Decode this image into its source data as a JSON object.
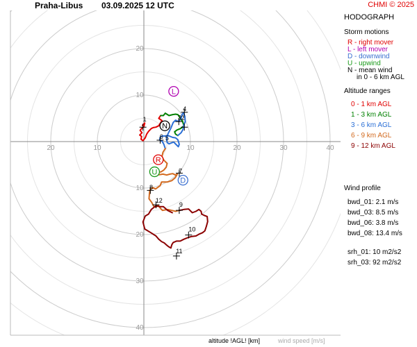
{
  "header": {
    "station": "Praha-Libus",
    "datetime": "03.09.2025 12 UTC",
    "copyright": "CHMI © 2025"
  },
  "panel": {
    "title": "HODOGRAPH",
    "storm_title": "Storm motions",
    "storm_items": [
      {
        "text": "R - right mover",
        "color": "#e00000"
      },
      {
        "text": "L - left mover",
        "color": "#b000b0"
      },
      {
        "text": "D - downwind",
        "color": "#3a6fd0"
      },
      {
        "text": "U - upwind",
        "color": "#1a9a1a"
      },
      {
        "text": "N - mean wind",
        "color": "#000000"
      },
      {
        "text": "in 0 - 6 km AGL",
        "color": "#000000"
      }
    ],
    "alt_title": "Altitude ranges",
    "alt_items": [
      {
        "text": "0 - 1 km AGL",
        "color": "#e00000"
      },
      {
        "text": "1 - 3 km AGL",
        "color": "#008000"
      },
      {
        "text": "3 - 6 km AGL",
        "color": "#2a6fd6"
      },
      {
        "text": "6 - 9 km AGL",
        "color": "#d2691e"
      },
      {
        "text": "9 - 12 km AGL",
        "color": "#8b0000"
      }
    ],
    "profile_title": "Wind profile",
    "profile_items": [
      "bwd_01: 2.1 m/s",
      "bwd_03: 8.5 m/s",
      "bwd_06: 3.8 m/s",
      "bwd_08: 13.4 m/s",
      "srh_01: 10 m2/s2",
      "srh_03: 92 m2/s2"
    ]
  },
  "footer": {
    "altitude": "altitude !AGL! [km]",
    "speed": "wind speed [m/s]"
  },
  "chart_data": {
    "type": "hodograph",
    "title": "HODOGRAPH",
    "rings": [
      10,
      20,
      30,
      40
    ],
    "ring_labels": [
      "10",
      "20",
      "30",
      "40"
    ],
    "x_tick_labels_left": [
      "10",
      "20"
    ],
    "x_tick_labels_right": [
      "10",
      "20",
      "30",
      "40"
    ],
    "grid": true,
    "colors": {
      "ring": "#cccccc",
      "axis": "#888888",
      "label": "#999999"
    },
    "series": [
      {
        "color": "#e00000",
        "points": [
          [
            -0.3,
            3.5
          ],
          [
            0.2,
            4.0
          ],
          [
            0.0,
            3.2
          ],
          [
            -0.5,
            2.8
          ],
          [
            -0.8,
            2.4
          ],
          [
            -0.4,
            1.9
          ],
          [
            -0.9,
            1.4
          ],
          [
            -0.5,
            1.1
          ],
          [
            -0.6,
            0.5
          ],
          [
            -0.2,
            0.2
          ],
          [
            0.3,
            0.8
          ],
          [
            0.6,
            1.6
          ],
          [
            1.0,
            2.2
          ],
          [
            1.6,
            2.8
          ],
          [
            2.0,
            3.0
          ],
          [
            2.6,
            3.1
          ],
          [
            3.2,
            3.4
          ],
          [
            3.5,
            3.9
          ],
          [
            3.9,
            4.5
          ],
          [
            3.2,
            5.0
          ],
          [
            3.6,
            5.6
          ]
        ]
      },
      {
        "color": "#008000",
        "points": [
          [
            3.6,
            5.6
          ],
          [
            4.2,
            5.6
          ],
          [
            4.6,
            6.1
          ],
          [
            5.4,
            5.6
          ],
          [
            6.2,
            5.8
          ],
          [
            6.8,
            5.9
          ],
          [
            7.3,
            5.8
          ],
          [
            7.6,
            5.4
          ],
          [
            7.9,
            4.8
          ],
          [
            8.3,
            4.4
          ],
          [
            8.6,
            3.4
          ],
          [
            7.9,
            2.8
          ],
          [
            7.1,
            2.5
          ],
          [
            6.6,
            2.1
          ],
          [
            6.8,
            1.6
          ],
          [
            7.3,
            1.3
          ]
        ]
      },
      {
        "color": "#2a6fd6",
        "points": [
          [
            7.3,
            1.3
          ],
          [
            8.0,
            1.9
          ],
          [
            8.4,
            2.6
          ],
          [
            8.6,
            3.6
          ],
          [
            8.9,
            4.3
          ],
          [
            8.8,
            5.4
          ],
          [
            8.5,
            6.2
          ],
          [
            8.2,
            5.8
          ],
          [
            8.0,
            5.0
          ],
          [
            7.6,
            4.4
          ],
          [
            7.2,
            4.4
          ],
          [
            6.8,
            4.6
          ],
          [
            6.3,
            4.1
          ],
          [
            5.8,
            2.9
          ],
          [
            5.1,
            1.5
          ],
          [
            4.9,
            0.5
          ],
          [
            5.0,
            -0.2
          ],
          [
            5.4,
            -0.5
          ],
          [
            5.9,
            -0.3
          ],
          [
            6.4,
            -0.1
          ],
          [
            6.9,
            -0.6
          ],
          [
            7.4,
            -1.1
          ],
          [
            7.6,
            -0.6
          ],
          [
            7.3,
            0.4
          ],
          [
            6.8,
            0.8
          ],
          [
            6.2,
            0.9
          ],
          [
            5.2,
            1.3
          ],
          [
            4.6,
            1.2
          ],
          [
            3.9,
            1.2
          ],
          [
            3.5,
            0.9
          ],
          [
            3.4,
            0.3
          ],
          [
            3.9,
            0.1
          ],
          [
            4.3,
            -0.6
          ],
          [
            4.6,
            -1.5
          ]
        ]
      },
      {
        "color": "#d2691e",
        "points": [
          [
            4.6,
            -1.5
          ],
          [
            4.1,
            -2.3
          ],
          [
            3.9,
            -3.2
          ],
          [
            4.3,
            -4.0
          ],
          [
            5.0,
            -4.7
          ],
          [
            4.8,
            -5.5
          ],
          [
            4.3,
            -6.1
          ],
          [
            3.7,
            -6.5
          ],
          [
            3.0,
            -6.6
          ],
          [
            2.3,
            -6.2
          ],
          [
            2.1,
            -6.6
          ],
          [
            2.6,
            -7.2
          ],
          [
            3.4,
            -7.1
          ],
          [
            4.1,
            -7.0
          ],
          [
            4.9,
            -7.2
          ],
          [
            5.6,
            -7.0
          ],
          [
            6.2,
            -6.9
          ],
          [
            6.8,
            -7.2
          ],
          [
            7.2,
            -7.0
          ],
          [
            6.7,
            -7.8
          ],
          [
            6.0,
            -8.4
          ],
          [
            5.0,
            -8.7
          ],
          [
            3.8,
            -8.7
          ],
          [
            3.5,
            -9.5
          ],
          [
            2.5,
            -10.2
          ],
          [
            1.9,
            -9.9
          ],
          [
            1.3,
            -10.4
          ],
          [
            1.2,
            -11.2
          ],
          [
            1.1,
            -12.3
          ],
          [
            1.7,
            -13.1
          ],
          [
            2.1,
            -13.9
          ],
          [
            2.6,
            -14.1
          ],
          [
            3.1,
            -13.7
          ],
          [
            3.6,
            -14.4
          ],
          [
            4.0,
            -14.8
          ],
          [
            5.1,
            -14.6
          ],
          [
            6.0,
            -14.8
          ],
          [
            6.8,
            -15.0
          ],
          [
            7.6,
            -14.8
          ]
        ]
      },
      {
        "color": "#8b0000",
        "points": [
          [
            7.6,
            -14.8
          ],
          [
            8.6,
            -14.6
          ],
          [
            9.6,
            -14.5
          ],
          [
            10.4,
            -15.3
          ],
          [
            11.2,
            -15.0
          ],
          [
            11.8,
            -14.6
          ],
          [
            12.3,
            -15.0
          ],
          [
            12.4,
            -15.6
          ],
          [
            13.0,
            -15.9
          ],
          [
            13.6,
            -16.1
          ],
          [
            13.7,
            -17.2
          ],
          [
            13.4,
            -18.3
          ],
          [
            13.1,
            -19.2
          ],
          [
            12.6,
            -19.6
          ],
          [
            11.9,
            -19.9
          ],
          [
            11.2,
            -20.3
          ],
          [
            10.3,
            -20.4
          ],
          [
            9.6,
            -20.6
          ],
          [
            8.6,
            -21.0
          ],
          [
            7.8,
            -21.4
          ],
          [
            7.0,
            -21.4
          ],
          [
            6.3,
            -21.7
          ],
          [
            6.0,
            -22.2
          ],
          [
            5.8,
            -22.9
          ],
          [
            5.3,
            -22.6
          ],
          [
            4.8,
            -22.2
          ],
          [
            4.4,
            -21.8
          ],
          [
            3.8,
            -21.5
          ],
          [
            3.2,
            -21.0
          ],
          [
            2.6,
            -20.3
          ],
          [
            1.5,
            -19.6
          ],
          [
            0.2,
            -18.8
          ],
          [
            -0.2,
            -17.3
          ],
          [
            0.3,
            -16.0
          ],
          [
            1.0,
            -15.6
          ],
          [
            1.6,
            -14.6
          ],
          [
            2.6,
            -13.8
          ],
          [
            3.4,
            -14.0
          ],
          [
            4.2,
            -14.0
          ],
          [
            5.1,
            -14.8
          ],
          [
            6.1,
            -15.3
          ]
        ]
      }
    ],
    "level_markers": [
      {
        "label": "1",
        "u": -0.2,
        "v": 4.3
      },
      {
        "label": "2",
        "u": 8.0,
        "v": 4.6
      },
      {
        "label": "3",
        "u": 7.3,
        "v": 4.7
      },
      {
        "label": "4",
        "u": 8.4,
        "v": 6.6
      },
      {
        "label": "5",
        "u": 4.6,
        "v": 0.3
      },
      {
        "label": "6",
        "u": 3.4,
        "v": 0.6
      },
      {
        "label": "7",
        "u": 7.5,
        "v": -6.8
      },
      {
        "label": "8",
        "u": 1.2,
        "v": -10.3
      },
      {
        "label": "9",
        "u": 7.6,
        "v": -14.0
      },
      {
        "label": "10",
        "u": 9.6,
        "v": -19.3
      },
      {
        "label": "11",
        "u": 6.9,
        "v": -24.0
      },
      {
        "label": "12",
        "u": 2.5,
        "v": -13.1
      }
    ],
    "storm_motions": [
      {
        "label": "N",
        "u": 4.5,
        "v": 3.4,
        "color": "#000000"
      },
      {
        "label": "L",
        "u": 6.4,
        "v": 10.8,
        "color": "#b000b0"
      },
      {
        "label": "R",
        "u": 3.1,
        "v": -3.9,
        "color": "#e00000"
      },
      {
        "label": "U",
        "u": 2.3,
        "v": -6.5,
        "color": "#1a9a1a"
      },
      {
        "label": "D",
        "u": 8.4,
        "v": -8.3,
        "color": "#3a6fd0"
      }
    ],
    "grid_ticks": [
      [
        -0.2,
        3.1
      ],
      [
        8.7,
        6.3
      ],
      [
        8.7,
        3.1
      ],
      [
        7.5,
        4.3
      ],
      [
        3.5,
        0.3
      ],
      [
        7.6,
        -6.8
      ],
      [
        1.4,
        -10.5
      ],
      [
        2.6,
        -13.6
      ],
      [
        7.6,
        -14.8
      ],
      [
        9.6,
        -20.1
      ],
      [
        7.0,
        -24.6
      ]
    ],
    "xlabel": "altitude !AGL! [km]",
    "ylabel": "wind speed [m/s]"
  }
}
